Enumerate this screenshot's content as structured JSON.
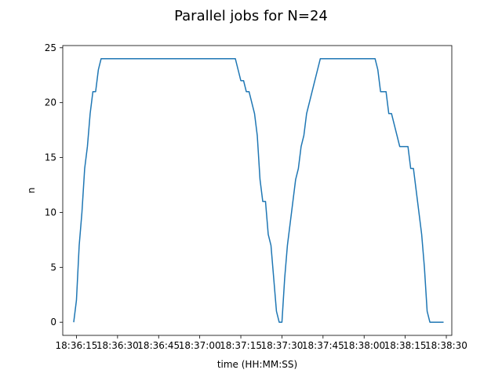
{
  "chart_data": {
    "type": "line",
    "title": "Parallel jobs for N=24",
    "xlabel": "time (HH:MM:SS)",
    "ylabel": "n",
    "xlim": [
      "18:36:10",
      "18:38:32"
    ],
    "ylim": [
      -1.2,
      25.2
    ],
    "x_ticks": [
      "18:36:15",
      "18:36:30",
      "18:36:45",
      "18:37:00",
      "18:37:15",
      "18:37:30",
      "18:37:45",
      "18:38:00",
      "18:38:15",
      "18:38:30"
    ],
    "y_ticks": [
      0,
      5,
      10,
      15,
      20,
      25
    ],
    "grid": false,
    "colors": {
      "series": "#1f77b4"
    },
    "series": [
      {
        "x": [
          "18:36:14",
          "18:36:15",
          "18:36:16",
          "18:36:17",
          "18:36:18",
          "18:36:19",
          "18:36:20",
          "18:36:21",
          "18:36:22",
          "18:36:23",
          "18:36:24",
          "18:36:25",
          "18:36:30",
          "18:37:00",
          "18:37:13",
          "18:37:14",
          "18:37:15",
          "18:37:16",
          "18:37:17",
          "18:37:18",
          "18:37:19",
          "18:37:20",
          "18:37:21",
          "18:37:22",
          "18:37:23",
          "18:37:24",
          "18:37:25",
          "18:37:26",
          "18:37:27",
          "18:37:28",
          "18:37:29",
          "18:37:30",
          "18:37:31",
          "18:37:32",
          "18:37:33",
          "18:37:34",
          "18:37:35",
          "18:37:36",
          "18:37:37",
          "18:37:38",
          "18:37:39",
          "18:37:40",
          "18:37:41",
          "18:37:42",
          "18:37:43",
          "18:37:44",
          "18:37:45",
          "18:38:00",
          "18:38:04",
          "18:38:05",
          "18:38:06",
          "18:38:07",
          "18:38:08",
          "18:38:09",
          "18:38:10",
          "18:38:11",
          "18:38:12",
          "18:38:13",
          "18:38:14",
          "18:38:15",
          "18:38:16",
          "18:38:17",
          "18:38:18",
          "18:38:19",
          "18:38:20",
          "18:38:21",
          "18:38:22",
          "18:38:23",
          "18:38:24",
          "18:38:25",
          "18:38:26",
          "18:38:29"
        ],
        "values": [
          0,
          2,
          7,
          10,
          14,
          16,
          19,
          21,
          21,
          23,
          24,
          24,
          24,
          24,
          24,
          23,
          22,
          22,
          21,
          21,
          20,
          19,
          17,
          13,
          11,
          11,
          8,
          7,
          4,
          1,
          0,
          0,
          4,
          7,
          9,
          11,
          13,
          14,
          16,
          17,
          19,
          20,
          21,
          22,
          23,
          24,
          24,
          24,
          24,
          23,
          21,
          21,
          21,
          19,
          19,
          18,
          17,
          16,
          16,
          16,
          16,
          14,
          14,
          12,
          10,
          8,
          5,
          1,
          0,
          0,
          0,
          0
        ]
      }
    ]
  }
}
